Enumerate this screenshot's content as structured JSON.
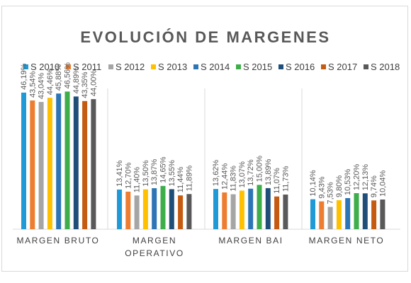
{
  "chart_data": {
    "type": "bar",
    "title": "EVOLUCIÓN  DE  MARGENES",
    "categories": [
      "MARGEN BRUTO",
      "MARGEN OPERATIVO",
      "MARGEN BAI",
      "MARGEN NETO"
    ],
    "value_suffix": "%",
    "ylim": [
      0,
      50
    ],
    "grid": false,
    "legend_position": "top",
    "series": [
      {
        "name": "S 2010",
        "color": "#1f9ad6",
        "values": [
          46.19,
          13.41,
          13.62,
          10.14
        ]
      },
      {
        "name": "S 2011",
        "color": "#ed7d31",
        "values": [
          43.54,
          12.7,
          12.44,
          9.43
        ]
      },
      {
        "name": "S 2012",
        "color": "#a5a5a5",
        "values": [
          43.04,
          11.4,
          11.83,
          7.53
        ]
      },
      {
        "name": "S 2013",
        "color": "#ffc000",
        "values": [
          44.46,
          13.5,
          13.07,
          9.8
        ]
      },
      {
        "name": "S 2014",
        "color": "#2e75b6",
        "values": [
          45.88,
          13.87,
          13.72,
          10.53
        ]
      },
      {
        "name": "S 2015",
        "color": "#3dae49",
        "values": [
          46.56,
          14.65,
          15.0,
          12.2
        ]
      },
      {
        "name": "S 2016",
        "color": "#1f4e79",
        "values": [
          44.89,
          13.55,
          13.89,
          12.13
        ]
      },
      {
        "name": "S 2017",
        "color": "#c55a11",
        "values": [
          43.35,
          11.44,
          11.07,
          9.74
        ]
      },
      {
        "name": "S 2018",
        "color": "#595959",
        "values": [
          44.0,
          11.89,
          11.73,
          10.04
        ]
      }
    ]
  }
}
